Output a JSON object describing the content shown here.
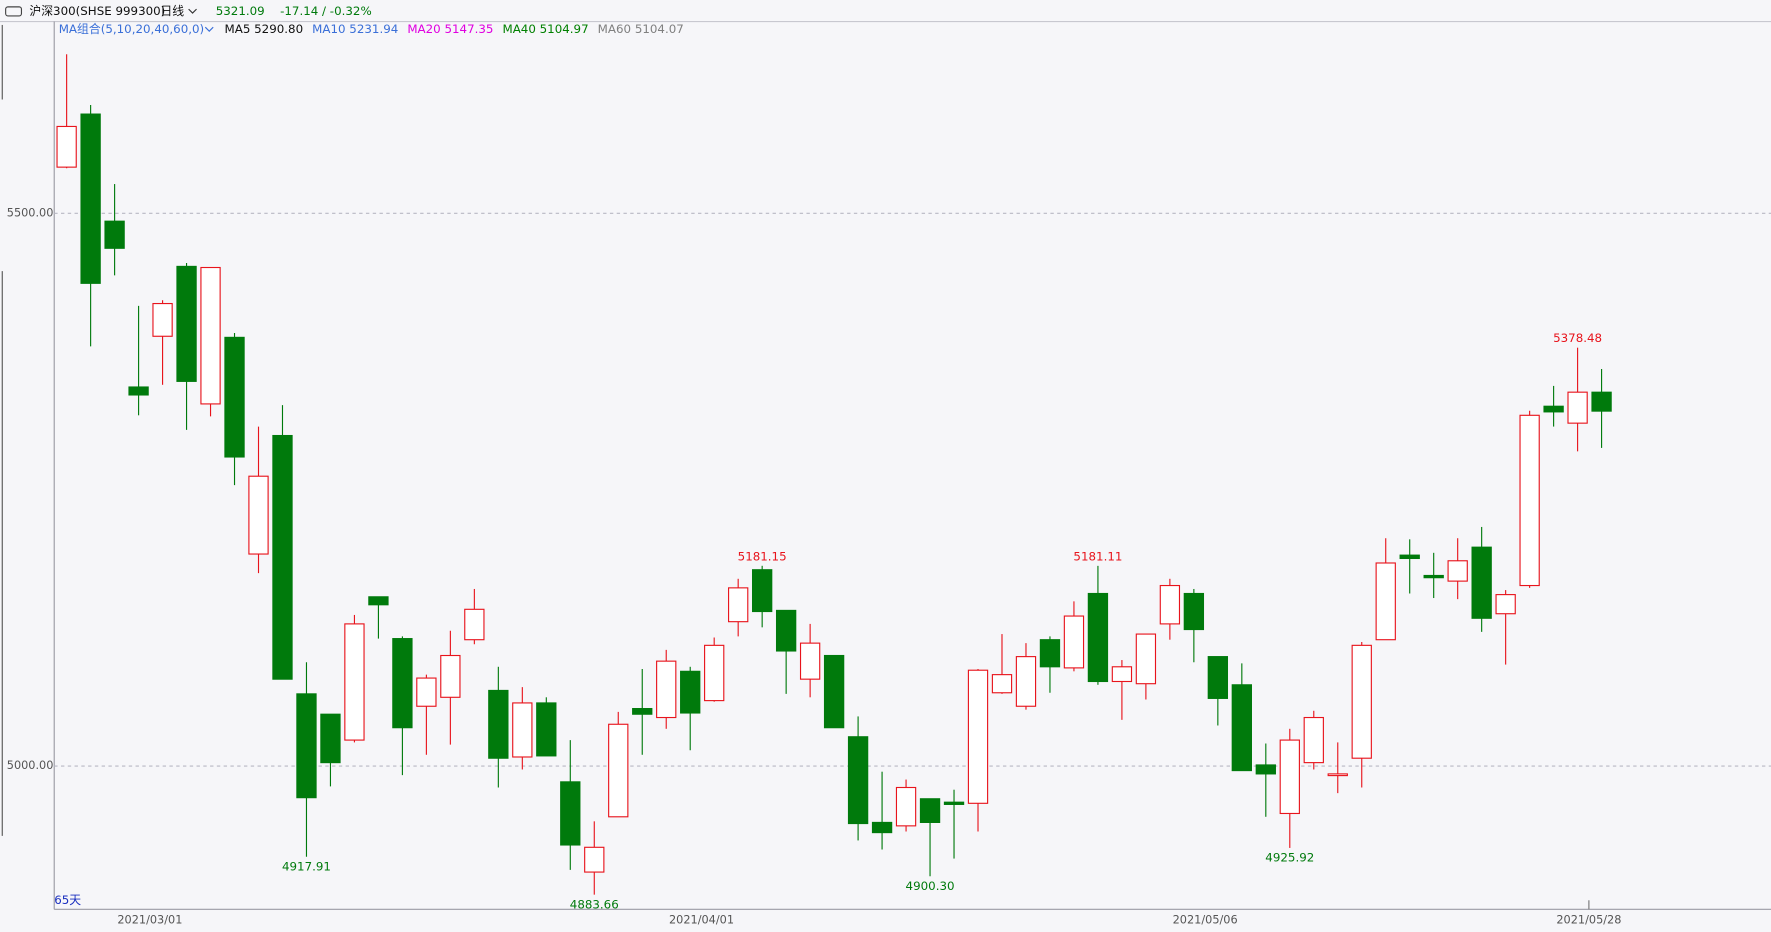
{
  "header": {
    "symbol": "沪深300(SHSE 999300)",
    "period": "日线",
    "price": "5321.09",
    "change": "-17.14 / -0.32%",
    "ma_legend": [
      {
        "text": "MA组合(5,10,20,40,60,0)",
        "color": "#3a6fd8"
      },
      {
        "text": "MA5 5290.80",
        "color": "#111111"
      },
      {
        "text": "MA10 5231.94",
        "color": "#3a6fd8"
      },
      {
        "text": "MA20 5147.35",
        "color": "#e000e0"
      },
      {
        "text": "MA40 5104.97",
        "color": "#008000"
      },
      {
        "text": "MA60 5104.07",
        "color": "#808080"
      }
    ],
    "days": "65天"
  },
  "chart_data": {
    "type": "candlestick",
    "categories": [
      null,
      null,
      null,
      "2021/03/01",
      null,
      null,
      null,
      null,
      null,
      null,
      null,
      null,
      null,
      null,
      null,
      null,
      null,
      null,
      null,
      null,
      null,
      null,
      null,
      null,
      null,
      null,
      "2021/04/01",
      null,
      null,
      null,
      null,
      null,
      null,
      null,
      null,
      null,
      null,
      null,
      null,
      null,
      null,
      null,
      null,
      null,
      null,
      null,
      null,
      "2021/05/06",
      null,
      null,
      null,
      null,
      null,
      null,
      null,
      null,
      null,
      null,
      null,
      null,
      null,
      null,
      null,
      "2021/05/28",
      null
    ],
    "open": [
      5541.8,
      5589.8,
      5492.9,
      5342.9,
      5388.8,
      5452.0,
      5327.6,
      5387.8,
      5191.8,
      5299.0,
      5065.3,
      5046.9,
      5023.5,
      5153.1,
      5115.3,
      5054.1,
      5062.2,
      5114.3,
      5068.4,
      5008.2,
      5057.1,
      4985.7,
      4904.1,
      4954.1,
      5052.0,
      5043.9,
      5085.7,
      5059.2,
      5130.6,
      5177.6,
      5140.8,
      5078.6,
      5100.0,
      5026.5,
      4949.0,
      4945.9,
      4970.4,
      4967.3,
      4966.3,
      5066.3,
      5054.1,
      5114.3,
      5088.8,
      5156.1,
      5076.5,
      5074.5,
      5128.6,
      5156.1,
      5099.0,
      5073.5,
      5001.0,
      4957.1,
      5003.1,
      4991.8,
      5007.1,
      5114.3,
      5190.8,
      5172.4,
      5167.3,
      5198.0,
      5137.8,
      5163.3,
      5325.5,
      5310.2,
      5338.2
    ],
    "close": [
      5578.6,
      5436.7,
      5468.4,
      5335.7,
      5418.4,
      5348.0,
      5451.0,
      5279.6,
      5262.2,
      5078.6,
      4971.4,
      5003.1,
      5128.6,
      5145.9,
      5034.7,
      5079.6,
      5100.0,
      5141.8,
      5007.1,
      5057.1,
      5009.2,
      4928.6,
      4926.5,
      5037.8,
      5046.9,
      5094.9,
      5048.0,
      5109.2,
      5161.2,
      5139.8,
      5104.1,
      5111.2,
      5034.7,
      4948.0,
      4939.8,
      4980.6,
      4949.0,
      4965.3,
      5086.7,
      5082.7,
      5099.0,
      5089.8,
      5135.7,
      5076.5,
      5089.8,
      5119.4,
      5163.3,
      5123.5,
      5061.2,
      4995.9,
      4992.9,
      5023.5,
      5043.9,
      4992.9,
      5109.2,
      5183.7,
      5187.8,
      5170.4,
      5185.7,
      5133.7,
      5155.1,
      5317.3,
      5320.4,
      5338.23,
      5321.09
    ],
    "high": [
      5643.9,
      5598.0,
      5526.5,
      5416.3,
      5421.4,
      5455.1,
      5451.0,
      5391.8,
      5307.1,
      5326.5,
      5093.9,
      5046.9,
      5136.7,
      5153.1,
      5117.3,
      5082.7,
      5122.4,
      5160.2,
      5089.8,
      5071.4,
      5062.2,
      5023.5,
      4950.0,
      5049.0,
      5087.8,
      5105.1,
      5089.8,
      5116.3,
      5169.4,
      5181.15,
      5140.8,
      5128.6,
      5100.0,
      5044.9,
      4994.9,
      4987.8,
      4970.4,
      4978.6,
      5087.8,
      5119.4,
      5111.2,
      5117.3,
      5149.0,
      5181.11,
      5095.9,
      5119.4,
      5169.4,
      5160.2,
      5099.0,
      5092.9,
      5020.4,
      5033.7,
      5050.0,
      5021.4,
      5112.2,
      5206.1,
      5205.1,
      5192.9,
      5206.1,
      5216.3,
      5159.2,
      5321.4,
      5343.9,
      5378.48,
      5359.2
    ],
    "low": [
      5540.8,
      5379.6,
      5443.9,
      5317.3,
      5344.9,
      5304.1,
      5316.3,
      5254.1,
      5174.5,
      5078.6,
      4917.91,
      4981.6,
      5021.4,
      5115.3,
      4991.8,
      5010.2,
      5019.4,
      5110.2,
      4980.6,
      4996.9,
      5009.2,
      4906.1,
      4883.66,
      4954.1,
      5010.2,
      5033.7,
      5014.3,
      5058.2,
      5117.3,
      5125.5,
      5065.3,
      5062.2,
      5034.7,
      4932.7,
      4924.5,
      4940.8,
      4900.3,
      4916.3,
      4940.8,
      5065.3,
      5051.0,
      5066.3,
      5085.7,
      5073.5,
      5041.8,
      5060.2,
      5114.3,
      5093.9,
      5036.7,
      4995.9,
      4954.1,
      4925.92,
      4996.9,
      4975.5,
      4980.6,
      5114.3,
      5156.1,
      5152.0,
      5151.0,
      5121.4,
      5091.8,
      5161.2,
      5307.1,
      5284.7,
      5287.8
    ],
    "high_labels": [
      null,
      null,
      null,
      null,
      null,
      null,
      null,
      null,
      null,
      null,
      null,
      null,
      null,
      null,
      null,
      null,
      null,
      null,
      null,
      null,
      null,
      null,
      null,
      null,
      null,
      null,
      null,
      null,
      null,
      "5181.15",
      null,
      null,
      null,
      null,
      null,
      null,
      null,
      null,
      null,
      null,
      null,
      null,
      null,
      "5181.11",
      null,
      null,
      null,
      null,
      null,
      null,
      null,
      null,
      null,
      null,
      null,
      null,
      null,
      null,
      null,
      null,
      null,
      null,
      null,
      "5378.48",
      null
    ],
    "low_labels": [
      null,
      null,
      null,
      null,
      null,
      null,
      null,
      null,
      null,
      null,
      "4917.91",
      null,
      null,
      null,
      null,
      null,
      null,
      null,
      null,
      null,
      null,
      null,
      "4883.66",
      null,
      null,
      null,
      null,
      null,
      null,
      null,
      null,
      null,
      null,
      null,
      null,
      null,
      "4900.30",
      null,
      null,
      null,
      null,
      null,
      null,
      null,
      null,
      null,
      null,
      null,
      null,
      null,
      null,
      "4925.92",
      null,
      null,
      null,
      null,
      null,
      null,
      null,
      null,
      null,
      null,
      null,
      null,
      null
    ],
    "up_color": "#e8141c",
    "down_color": "#007a0c",
    "ylim": [
      4870.4,
      5673.5
    ],
    "yticks": [
      {
        "value": 5000,
        "label": "5000.00"
      },
      {
        "value": 5500,
        "label": "5500.00"
      }
    ],
    "grid": true
  }
}
